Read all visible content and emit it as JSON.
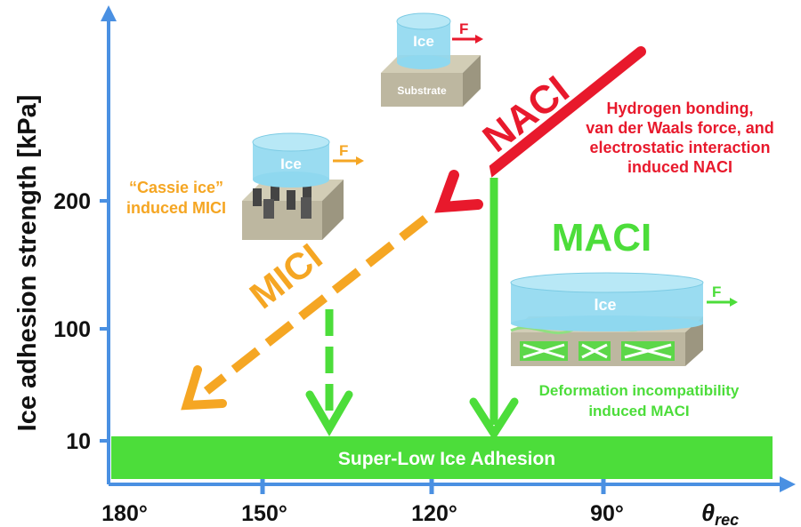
{
  "axes": {
    "y_label": "Ice adhesion strength [kPa]",
    "x_label": "θ",
    "x_label_sub": "rec",
    "y_ticks": [
      "10",
      "100",
      "200"
    ],
    "x_ticks": [
      "180°",
      "150°",
      "120°",
      "90°"
    ]
  },
  "band": {
    "label": "Super-Low Ice Adhesion"
  },
  "naci": {
    "label": "NACI",
    "desc_lines": [
      "Hydrogen bonding,",
      "van der Waals force, and",
      "electrostatic interaction",
      "induced NACI"
    ]
  },
  "mici": {
    "label": "MICI",
    "desc_lines": [
      "“Cassie ice”",
      "induced MICI"
    ]
  },
  "maci": {
    "label": "MACI",
    "desc_lines": [
      "Deformation incompatibility",
      "induced MACI"
    ]
  },
  "illus_top": {
    "ice_label": "Ice",
    "substrate_label": "Substrate",
    "force_label": "F"
  },
  "illus_cassie": {
    "ice_label": "Ice",
    "force_label": "F"
  },
  "illus_maci": {
    "ice_label": "Ice",
    "force_label": "F"
  },
  "colors": {
    "axis": "#4a90e2",
    "green": "#4cdd3a",
    "orange": "#f5a623",
    "red": "#e8192c",
    "ice": "#8fd8ef",
    "substrate": "#bdb7a0"
  }
}
